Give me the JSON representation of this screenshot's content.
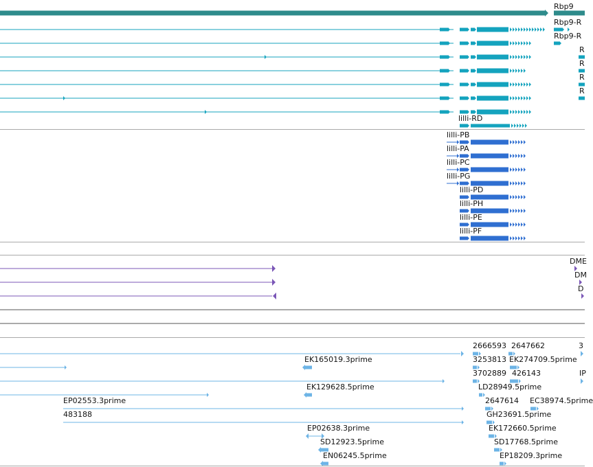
{
  "colors": {
    "gene": "#2e8b8b",
    "transcript_rbp9": "#14a3be",
    "transcript_lilli": "#2f6fd1",
    "transcript_purple": "#7b57b7",
    "est": "#6db4e6",
    "separator": "#a9a9a9"
  },
  "icons": [
    "arrow-right-icon",
    "arrow-left-icon"
  ],
  "rbp9_track": {
    "gene_label": "Rbp9",
    "transcript_labels": [
      "Rbp9-R",
      "Rbp9-R",
      "R",
      "R",
      "R",
      "R"
    ]
  },
  "lilli_track": {
    "labels": [
      "lilli-RD",
      "lilli-PB",
      "lilli-PA",
      "lilli-PC",
      "lilli-PG",
      "lilli-PD",
      "lilli-PH",
      "lilli-PE",
      "lilli-PF"
    ]
  },
  "purple_track": {
    "labels": [
      "DME",
      "DM",
      "D"
    ]
  },
  "est_track": {
    "labels": [
      "2666593",
      "2647662",
      "3",
      "EK165019.3prime",
      "3253813",
      "EK274709.5prime",
      "3702889",
      "426143",
      "IP",
      "EK129628.5prime",
      "LD28949.5prime",
      "EP02553.3prime",
      "2647614",
      "EC38974.5prime",
      "483188",
      "GH23691.5prime",
      "EP02638.3prime",
      "EK172660.5prime",
      "SD12923.5prime",
      "SD17768.5prime",
      "EN06245.5prime",
      "EP18209.3prime"
    ]
  }
}
